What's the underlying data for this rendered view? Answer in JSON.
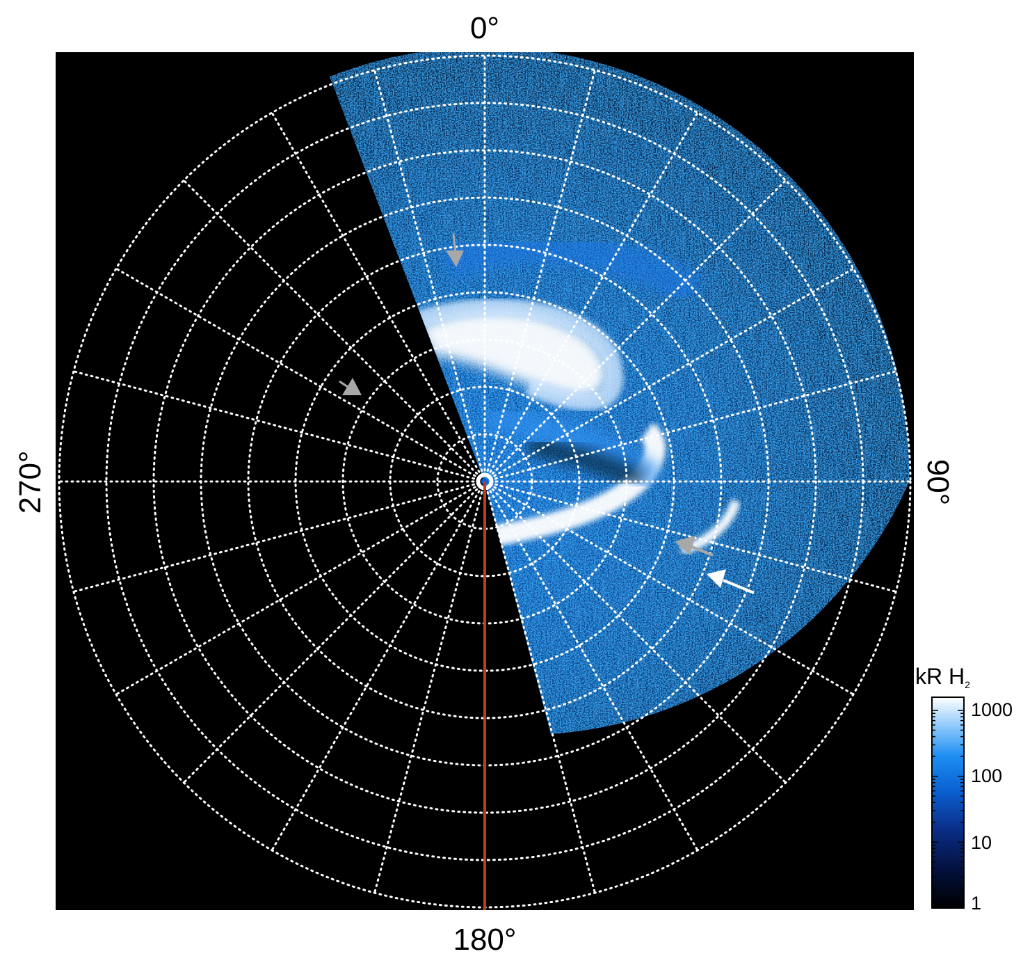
{
  "directions": {
    "top": "0°",
    "bottom": "180°",
    "left": "270°",
    "right": "90°"
  },
  "colorbar": {
    "title_main": "kR H",
    "title_sub": "2",
    "scale": "log",
    "ticks": [
      "1000",
      "100",
      "10",
      "1"
    ]
  },
  "colors": {
    "background": "#000000",
    "grid": "#ffffff",
    "meridian": "#c8391a",
    "emission_low": "#061a4a",
    "emission_mid": "#0a78ea",
    "emission_high": "#ffffff",
    "arrow_grey": "#a8a8a8",
    "arrow_white": "#ffffff"
  },
  "grid": {
    "rings": 9,
    "spokes": 24,
    "style": "dotted"
  }
}
